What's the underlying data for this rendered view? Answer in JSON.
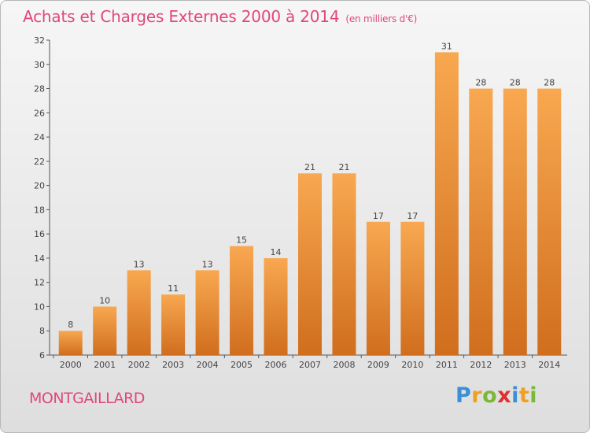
{
  "title": "Achats et Charges Externes 2000 à 2014",
  "subtitle": "(en milliers d'€)",
  "place": "MONTGAILLARD",
  "brand": {
    "name": "Proxiti",
    "letters": [
      {
        "ch": "P",
        "color": "#3a8fd6"
      },
      {
        "ch": "r",
        "color": "#f0a020"
      },
      {
        "ch": "o",
        "color": "#7ab83a"
      },
      {
        "ch": "x",
        "color": "#e03030"
      },
      {
        "ch": "i",
        "color": "#3a8fd6"
      },
      {
        "ch": "t",
        "color": "#f0a020"
      },
      {
        "ch": "i",
        "color": "#7ab83a"
      }
    ]
  },
  "colors": {
    "bar_top": "#f8a850",
    "bar_bottom": "#d06e1e",
    "title": "#e0487a"
  },
  "chart_data": {
    "type": "bar",
    "categories": [
      "2000",
      "2001",
      "2002",
      "2003",
      "2004",
      "2005",
      "2006",
      "2007",
      "2008",
      "2009",
      "2010",
      "2011",
      "2012",
      "2013",
      "2014"
    ],
    "values": [
      8,
      10,
      13,
      11,
      13,
      15,
      14,
      21,
      21,
      17,
      17,
      31,
      28,
      28,
      28
    ],
    "yticks": [
      6,
      8,
      10,
      12,
      14,
      16,
      18,
      20,
      22,
      24,
      26,
      28,
      30,
      32
    ],
    "ylim": [
      6,
      32
    ],
    "grid": false
  }
}
